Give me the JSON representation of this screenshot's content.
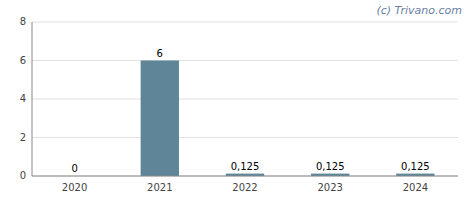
{
  "chart_data": {
    "type": "bar",
    "categories": [
      "2020",
      "2021",
      "2022",
      "2023",
      "2024"
    ],
    "values": [
      0,
      6,
      0.125,
      0.125,
      0.125
    ],
    "value_labels": [
      "0",
      "6",
      "0,125",
      "0,125",
      "0,125"
    ],
    "color": "#5f8598",
    "ylim": [
      0,
      8
    ],
    "yticks": [
      0,
      2,
      4,
      6,
      8
    ],
    "grid": true,
    "data_labels": true,
    "annotations": [
      "(c) Trivano.com"
    ]
  }
}
